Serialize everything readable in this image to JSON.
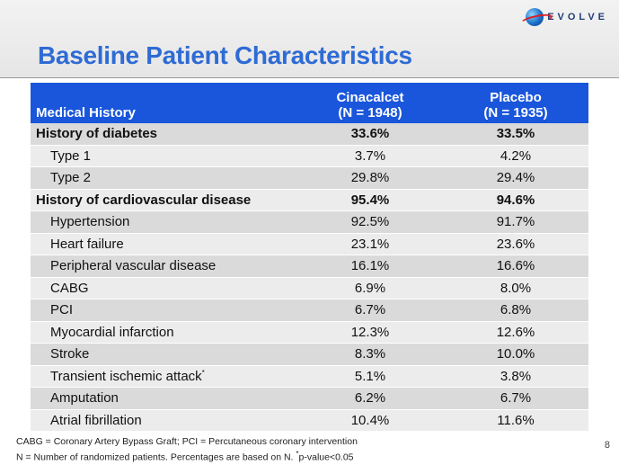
{
  "logo": {
    "text": "EVOLVE"
  },
  "title": "Baseline Patient Characteristics",
  "table": {
    "headers": {
      "label": "Medical History",
      "col1_line1": "Cinacalcet",
      "col1_line2": "(N = 1948)",
      "col2_line1": "Placebo",
      "col2_line2": "(N = 1935)"
    },
    "rows": [
      {
        "label": "History of diabetes",
        "cinacalcet": "33.6%",
        "placebo": "33.5%"
      },
      {
        "label": "Type 1",
        "cinacalcet": "3.7%",
        "placebo": "4.2%"
      },
      {
        "label": "Type 2",
        "cinacalcet": "29.8%",
        "placebo": "29.4%"
      },
      {
        "label": "History of cardiovascular disease",
        "cinacalcet": "95.4%",
        "placebo": "94.6%"
      },
      {
        "label": "Hypertension",
        "cinacalcet": "92.5%",
        "placebo": "91.7%"
      },
      {
        "label": "Heart failure",
        "cinacalcet": "23.1%",
        "placebo": "23.6%"
      },
      {
        "label": "Peripheral vascular disease",
        "cinacalcet": "16.1%",
        "placebo": "16.6%"
      },
      {
        "label": "CABG",
        "cinacalcet": "6.9%",
        "placebo": "8.0%"
      },
      {
        "label": "PCI",
        "cinacalcet": "6.7%",
        "placebo": "6.8%"
      },
      {
        "label": "Myocardial infarction",
        "cinacalcet": "12.3%",
        "placebo": "12.6%"
      },
      {
        "label": "Stroke",
        "cinacalcet": "8.3%",
        "placebo": "10.0%"
      },
      {
        "label": "Transient ischemic attack",
        "marker": "*",
        "cinacalcet": "5.1%",
        "placebo": "3.8%"
      },
      {
        "label": "Amputation",
        "cinacalcet": "6.2%",
        "placebo": "6.7%"
      },
      {
        "label": "Atrial fibrillation",
        "cinacalcet": "10.4%",
        "placebo": "11.6%"
      }
    ]
  },
  "footnotes": {
    "line1": "CABG = Coronary Artery Bypass Graft; PCI = Percutaneous coronary intervention",
    "line2_a": "N = Number of randomized patients.  Percentages are based on N.  ",
    "line2_marker": "*",
    "line2_b": "p-value<0.05"
  },
  "page_number": "8",
  "colors": {
    "title": "#2e6bd4",
    "header_bg": "#1a56db"
  }
}
